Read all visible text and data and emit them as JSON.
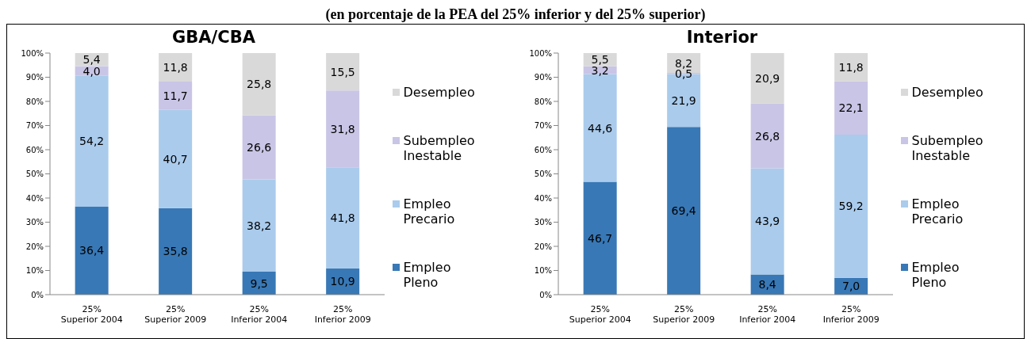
{
  "chart_data": [
    {
      "type": "bar",
      "title": "GBA/CBA",
      "subtitle": "(en porcentaje de la PEA del 25% inferior y del 25% superior)",
      "stacked": true,
      "legend": "right",
      "categories": [
        "25% Superior 2004",
        "25% Superior 2009",
        "25% Inferior 2004",
        "25% Inferior 2009"
      ],
      "ylim": [
        0,
        100
      ],
      "yticks": [
        {
          "value": 0,
          "label": "0%"
        },
        {
          "value": 10,
          "label": "10%"
        },
        {
          "value": 20,
          "label": "20%"
        },
        {
          "value": 30,
          "label": "30%"
        },
        {
          "value": 40,
          "label": "40%"
        },
        {
          "value": 50,
          "label": "50%"
        },
        {
          "value": 60,
          "label": "60%"
        },
        {
          "value": 70,
          "label": "70%"
        },
        {
          "value": 80,
          "label": "80%"
        },
        {
          "value": 90,
          "label": "90%"
        },
        {
          "value": 100,
          "label": "100%"
        }
      ],
      "series": [
        {
          "name": "Empleo Pleno",
          "color": "#3878b6",
          "values": [
            36.4,
            35.8,
            9.5,
            10.9
          ],
          "value_labels": [
            "36,4",
            "35,8",
            "9,5",
            "10,9"
          ]
        },
        {
          "name": "Empleo Precario",
          "color": "#aacbec",
          "values": [
            54.2,
            40.7,
            38.2,
            41.8
          ],
          "value_labels": [
            "54,2",
            "40,7",
            "38,2",
            "41,8"
          ]
        },
        {
          "name": "Subempleo Inestable",
          "color": "#c9c5e6",
          "values": [
            4.0,
            11.7,
            26.6,
            31.8
          ],
          "value_labels": [
            "4,0",
            "11,7",
            "26,6",
            "31,8"
          ]
        },
        {
          "name": "Desempleo",
          "color": "#d9d9d9",
          "values": [
            5.4,
            11.8,
            25.8,
            15.5
          ],
          "value_labels": [
            "5,4",
            "11,8",
            "25,8",
            "15,5"
          ]
        }
      ]
    },
    {
      "type": "bar",
      "title": "Interior",
      "stacked": true,
      "legend": "right",
      "categories": [
        "25% Superior 2004",
        "25% Superior 2009",
        "25% Inferior 2004",
        "25% Inferior 2009"
      ],
      "ylim": [
        0,
        100
      ],
      "yticks": [
        {
          "value": 0,
          "label": "0%"
        },
        {
          "value": 10,
          "label": "10%"
        },
        {
          "value": 20,
          "label": "20%"
        },
        {
          "value": 30,
          "label": "30%"
        },
        {
          "value": 40,
          "label": "40%"
        },
        {
          "value": 50,
          "label": "50%"
        },
        {
          "value": 60,
          "label": "60%"
        },
        {
          "value": 70,
          "label": "70%"
        },
        {
          "value": 80,
          "label": "80%"
        },
        {
          "value": 90,
          "label": "90%"
        },
        {
          "value": 100,
          "label": "100%"
        }
      ],
      "series": [
        {
          "name": "Empleo Pleno",
          "color": "#3878b6",
          "values": [
            46.7,
            69.4,
            8.4,
            7.0
          ],
          "value_labels": [
            "46,7",
            "69,4",
            "8,4",
            "7,0"
          ]
        },
        {
          "name": "Empleo Precario",
          "color": "#aacbec",
          "values": [
            44.6,
            21.9,
            43.9,
            59.2
          ],
          "value_labels": [
            "44,6",
            "21,9",
            "43,9",
            "59,2"
          ]
        },
        {
          "name": "Subempleo Inestable",
          "color": "#c9c5e6",
          "values": [
            3.2,
            0.5,
            26.8,
            22.1
          ],
          "value_labels": [
            "3,2",
            "0,5",
            "26,8",
            "22,1"
          ]
        },
        {
          "name": "Desempleo",
          "color": "#d9d9d9",
          "values": [
            5.5,
            8.2,
            20.9,
            11.8
          ],
          "value_labels": [
            "5,5",
            "8,2",
            "20,9",
            "11,8"
          ]
        }
      ]
    }
  ]
}
